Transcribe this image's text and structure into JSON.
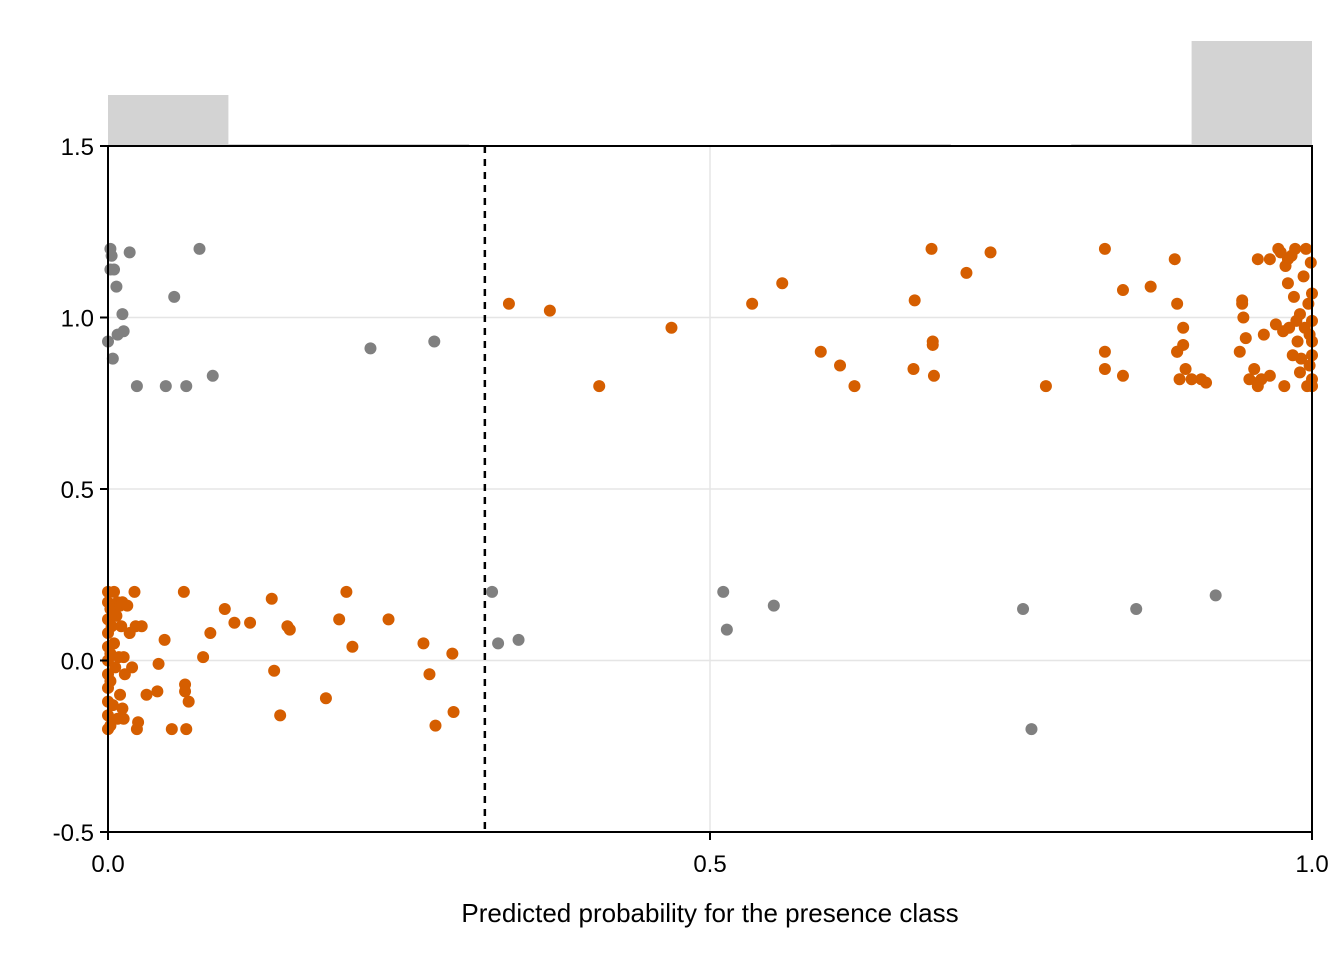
{
  "chart_data": {
    "type": "scatter",
    "title": "",
    "xlabel": "Predicted probability for the presence class",
    "ylabel": "",
    "xlim": [
      0.0,
      1.0
    ],
    "ylim": [
      -0.5,
      1.5
    ],
    "x_ticks": [
      "0.0",
      "0.5",
      "1.0"
    ],
    "y_ticks": [
      "-0.5",
      "0.0",
      "0.5",
      "1.0",
      "1.5"
    ],
    "grid": true,
    "threshold": 0.313,
    "colors": {
      "correct": "#D55E00",
      "incorrect": "#808080",
      "histogram": "#D3D3D3",
      "threshold": "#000000"
    },
    "histogram": {
      "bins": [
        0.0,
        0.1,
        0.2,
        0.3,
        0.4,
        0.5,
        0.6,
        0.7,
        0.8,
        0.9,
        1.0
      ],
      "heights": [
        0.34,
        0.01,
        0.01,
        0.0,
        0.0,
        0.0,
        0.005,
        0.0,
        0.01,
        0.7
      ]
    },
    "series": [
      {
        "role": "correct",
        "points": [
          [
            0.0,
            0.2
          ],
          [
            0.0,
            0.17
          ],
          [
            0.0,
            0.12
          ],
          [
            0.0,
            0.08
          ],
          [
            0.0,
            0.04
          ],
          [
            0.0,
            0.0
          ],
          [
            0.0,
            -0.04
          ],
          [
            0.0,
            -0.08
          ],
          [
            0.0,
            -0.12
          ],
          [
            0.0,
            -0.16
          ],
          [
            0.0,
            -0.2
          ],
          [
            0.002,
            0.15
          ],
          [
            0.002,
            0.02
          ],
          [
            0.002,
            -0.06
          ],
          [
            0.002,
            -0.19
          ],
          [
            0.003,
            0.1
          ],
          [
            0.004,
            -0.13
          ],
          [
            0.005,
            0.2
          ],
          [
            0.005,
            0.05
          ],
          [
            0.006,
            -0.02
          ],
          [
            0.007,
            0.13
          ],
          [
            0.008,
            0.17
          ],
          [
            0.008,
            -0.17
          ],
          [
            0.009,
            0.01
          ],
          [
            0.01,
            0.16
          ],
          [
            0.01,
            -0.1
          ],
          [
            0.011,
            0.1
          ],
          [
            0.012,
            0.17
          ],
          [
            0.012,
            -0.14
          ],
          [
            0.013,
            -0.17
          ],
          [
            0.013,
            0.01
          ],
          [
            0.014,
            -0.04
          ],
          [
            0.016,
            0.16
          ],
          [
            0.018,
            0.08
          ],
          [
            0.02,
            -0.02
          ],
          [
            0.022,
            0.2
          ],
          [
            0.023,
            0.1
          ],
          [
            0.024,
            -0.2
          ],
          [
            0.025,
            -0.18
          ],
          [
            0.028,
            0.1
          ],
          [
            0.032,
            -0.1
          ],
          [
            0.041,
            -0.09
          ],
          [
            0.042,
            -0.01
          ],
          [
            0.047,
            0.06
          ],
          [
            0.053,
            -0.2
          ],
          [
            0.063,
            0.2
          ],
          [
            0.064,
            -0.07
          ],
          [
            0.064,
            -0.09
          ],
          [
            0.065,
            -0.2
          ],
          [
            0.067,
            -0.12
          ],
          [
            0.079,
            0.01
          ],
          [
            0.085,
            0.08
          ],
          [
            0.097,
            0.15
          ],
          [
            0.105,
            0.11
          ],
          [
            0.118,
            0.11
          ],
          [
            0.136,
            0.18
          ],
          [
            0.138,
            -0.03
          ],
          [
            0.143,
            -0.16
          ],
          [
            0.149,
            0.1
          ],
          [
            0.151,
            0.09
          ],
          [
            0.181,
            -0.11
          ],
          [
            0.192,
            0.12
          ],
          [
            0.198,
            0.2
          ],
          [
            0.203,
            0.04
          ],
          [
            0.233,
            0.12
          ],
          [
            0.262,
            0.05
          ],
          [
            0.267,
            -0.04
          ],
          [
            0.272,
            -0.19
          ],
          [
            0.286,
            0.02
          ],
          [
            0.287,
            -0.15
          ],
          [
            0.333,
            1.04
          ],
          [
            0.367,
            1.02
          ],
          [
            0.408,
            0.8
          ],
          [
            0.468,
            0.97
          ],
          [
            0.535,
            1.04
          ],
          [
            0.56,
            1.1
          ],
          [
            0.592,
            0.9
          ],
          [
            0.608,
            0.86
          ],
          [
            0.62,
            0.8
          ],
          [
            0.67,
            1.05
          ],
          [
            0.669,
            0.85
          ],
          [
            0.685,
            0.93
          ],
          [
            0.685,
            0.92
          ],
          [
            0.684,
            1.2
          ],
          [
            0.686,
            0.83
          ],
          [
            0.713,
            1.13
          ],
          [
            0.733,
            1.19
          ],
          [
            0.779,
            0.8
          ],
          [
            0.828,
            1.2
          ],
          [
            0.828,
            0.9
          ],
          [
            0.828,
            0.85
          ],
          [
            0.843,
            1.08
          ],
          [
            0.843,
            0.83
          ],
          [
            0.866,
            1.09
          ],
          [
            0.886,
            1.17
          ],
          [
            0.888,
            1.04
          ],
          [
            0.888,
            0.9
          ],
          [
            0.888,
            0.9
          ],
          [
            0.89,
            0.82
          ],
          [
            0.893,
            0.97
          ],
          [
            0.893,
            0.92
          ],
          [
            0.895,
            0.85
          ],
          [
            0.9,
            0.82
          ],
          [
            0.908,
            0.82
          ],
          [
            0.912,
            0.81
          ],
          [
            0.94,
            0.9
          ],
          [
            0.942,
            1.05
          ],
          [
            0.942,
            1.04
          ],
          [
            0.943,
            1.0
          ],
          [
            0.945,
            0.94
          ],
          [
            0.948,
            0.82
          ],
          [
            0.952,
            0.85
          ],
          [
            0.955,
            0.81
          ],
          [
            0.955,
            0.8
          ],
          [
            0.955,
            1.17
          ],
          [
            0.958,
            0.82
          ],
          [
            0.96,
            0.95
          ],
          [
            0.965,
            1.17
          ],
          [
            0.965,
            0.83
          ],
          [
            0.97,
            0.98
          ],
          [
            0.972,
            1.2
          ],
          [
            0.974,
            1.19
          ],
          [
            0.976,
            0.96
          ],
          [
            0.977,
            0.8
          ],
          [
            0.978,
            1.15
          ],
          [
            0.98,
            1.17
          ],
          [
            0.98,
            1.1
          ],
          [
            0.981,
            0.97
          ],
          [
            0.983,
            1.18
          ],
          [
            0.984,
            0.89
          ],
          [
            0.985,
            1.06
          ],
          [
            0.986,
            1.2
          ],
          [
            0.987,
            0.99
          ],
          [
            0.988,
            0.93
          ],
          [
            0.99,
            1.01
          ],
          [
            0.99,
            0.84
          ],
          [
            0.991,
            0.88
          ],
          [
            0.993,
            1.12
          ],
          [
            0.994,
            0.97
          ],
          [
            0.995,
            1.2
          ],
          [
            0.996,
            0.8
          ],
          [
            0.997,
            1.04
          ],
          [
            0.998,
            0.95
          ],
          [
            0.998,
            0.86
          ],
          [
            0.999,
            1.16
          ],
          [
            1.0,
            1.07
          ],
          [
            1.0,
            0.99
          ],
          [
            1.0,
            0.93
          ],
          [
            1.0,
            0.89
          ],
          [
            1.0,
            0.82
          ],
          [
            1.0,
            0.8
          ]
        ]
      },
      {
        "role": "incorrect",
        "points": [
          [
            0.0,
            0.93
          ],
          [
            0.002,
            1.2
          ],
          [
            0.002,
            1.14
          ],
          [
            0.003,
            1.18
          ],
          [
            0.004,
            0.88
          ],
          [
            0.005,
            1.14
          ],
          [
            0.007,
            1.09
          ],
          [
            0.008,
            0.95
          ],
          [
            0.012,
            1.01
          ],
          [
            0.013,
            0.96
          ],
          [
            0.018,
            1.19
          ],
          [
            0.024,
            0.8
          ],
          [
            0.048,
            0.8
          ],
          [
            0.055,
            1.06
          ],
          [
            0.065,
            0.8
          ],
          [
            0.076,
            1.2
          ],
          [
            0.087,
            0.83
          ],
          [
            0.218,
            0.91
          ],
          [
            0.271,
            0.93
          ],
          [
            0.319,
            0.2
          ],
          [
            0.324,
            0.05
          ],
          [
            0.341,
            0.06
          ],
          [
            0.511,
            0.2
          ],
          [
            0.514,
            0.09
          ],
          [
            0.553,
            0.16
          ],
          [
            0.76,
            0.15
          ],
          [
            0.767,
            -0.2
          ],
          [
            0.854,
            0.15
          ],
          [
            0.92,
            0.19
          ]
        ]
      }
    ]
  }
}
